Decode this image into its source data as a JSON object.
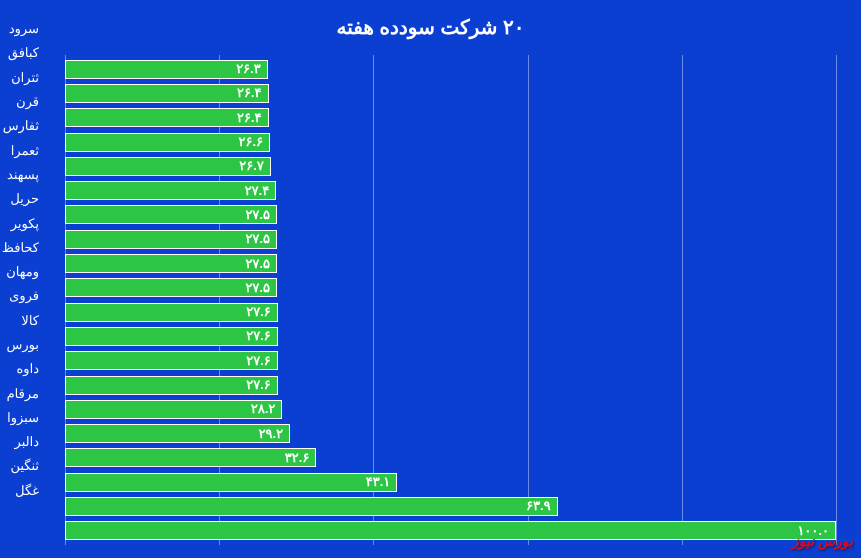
{
  "chart": {
    "type": "bar-horizontal",
    "title": "۲۰ شرکت سودده هفته",
    "title_color": "#ffffff",
    "title_fontsize": 20,
    "background_color": "#0b3fd1",
    "bar_color": "#2cc644",
    "bar_border_color": "#ffffff",
    "value_label_color": "#ffffff",
    "y_label_color": "#ffffff",
    "gridline_color": "#6a8ee8",
    "xlim_min": 0,
    "xlim_max": 100,
    "grid_positions": [
      0,
      20,
      40,
      60,
      80,
      100
    ],
    "value_fontsize": 13,
    "label_fontsize": 13,
    "bars": [
      {
        "label": "سرود",
        "value": 26.3,
        "value_fa": "۲۶.۳"
      },
      {
        "label": "کبافق",
        "value": 26.4,
        "value_fa": "۲۶.۴"
      },
      {
        "label": "ثتران",
        "value": 26.4,
        "value_fa": "۲۶.۴"
      },
      {
        "label": "قرن",
        "value": 26.6,
        "value_fa": "۲۶.۶"
      },
      {
        "label": "ثفارس",
        "value": 26.7,
        "value_fa": "۲۶.۷"
      },
      {
        "label": "ثعمرا",
        "value": 27.4,
        "value_fa": "۲۷.۴"
      },
      {
        "label": "پسهند",
        "value": 27.5,
        "value_fa": "۲۷.۵"
      },
      {
        "label": "حریل",
        "value": 27.5,
        "value_fa": "۲۷.۵"
      },
      {
        "label": "پکویر",
        "value": 27.5,
        "value_fa": "۲۷.۵"
      },
      {
        "label": "کحافظ",
        "value": 27.5,
        "value_fa": "۲۷.۵"
      },
      {
        "label": "ومهان",
        "value": 27.6,
        "value_fa": "۲۷.۶"
      },
      {
        "label": "فروی",
        "value": 27.6,
        "value_fa": "۲۷.۶"
      },
      {
        "label": "کالا",
        "value": 27.6,
        "value_fa": "۲۷.۶"
      },
      {
        "label": "بورس",
        "value": 27.6,
        "value_fa": "۲۷.۶"
      },
      {
        "label": "داوه",
        "value": 28.2,
        "value_fa": "۲۸.۲"
      },
      {
        "label": "مرقام",
        "value": 29.2,
        "value_fa": "۲۹.۲"
      },
      {
        "label": "سبزوا",
        "value": 32.6,
        "value_fa": "۳۲.۶"
      },
      {
        "label": "دالبر",
        "value": 43.1,
        "value_fa": "۴۳.۱"
      },
      {
        "label": "ثنگین",
        "value": 63.9,
        "value_fa": "۶۳.۹"
      },
      {
        "label": "غگل",
        "value": 100.0,
        "value_fa": "۱۰۰.۰"
      }
    ]
  },
  "watermark": {
    "text": "بورس نیوز",
    "color": "#e30613"
  }
}
